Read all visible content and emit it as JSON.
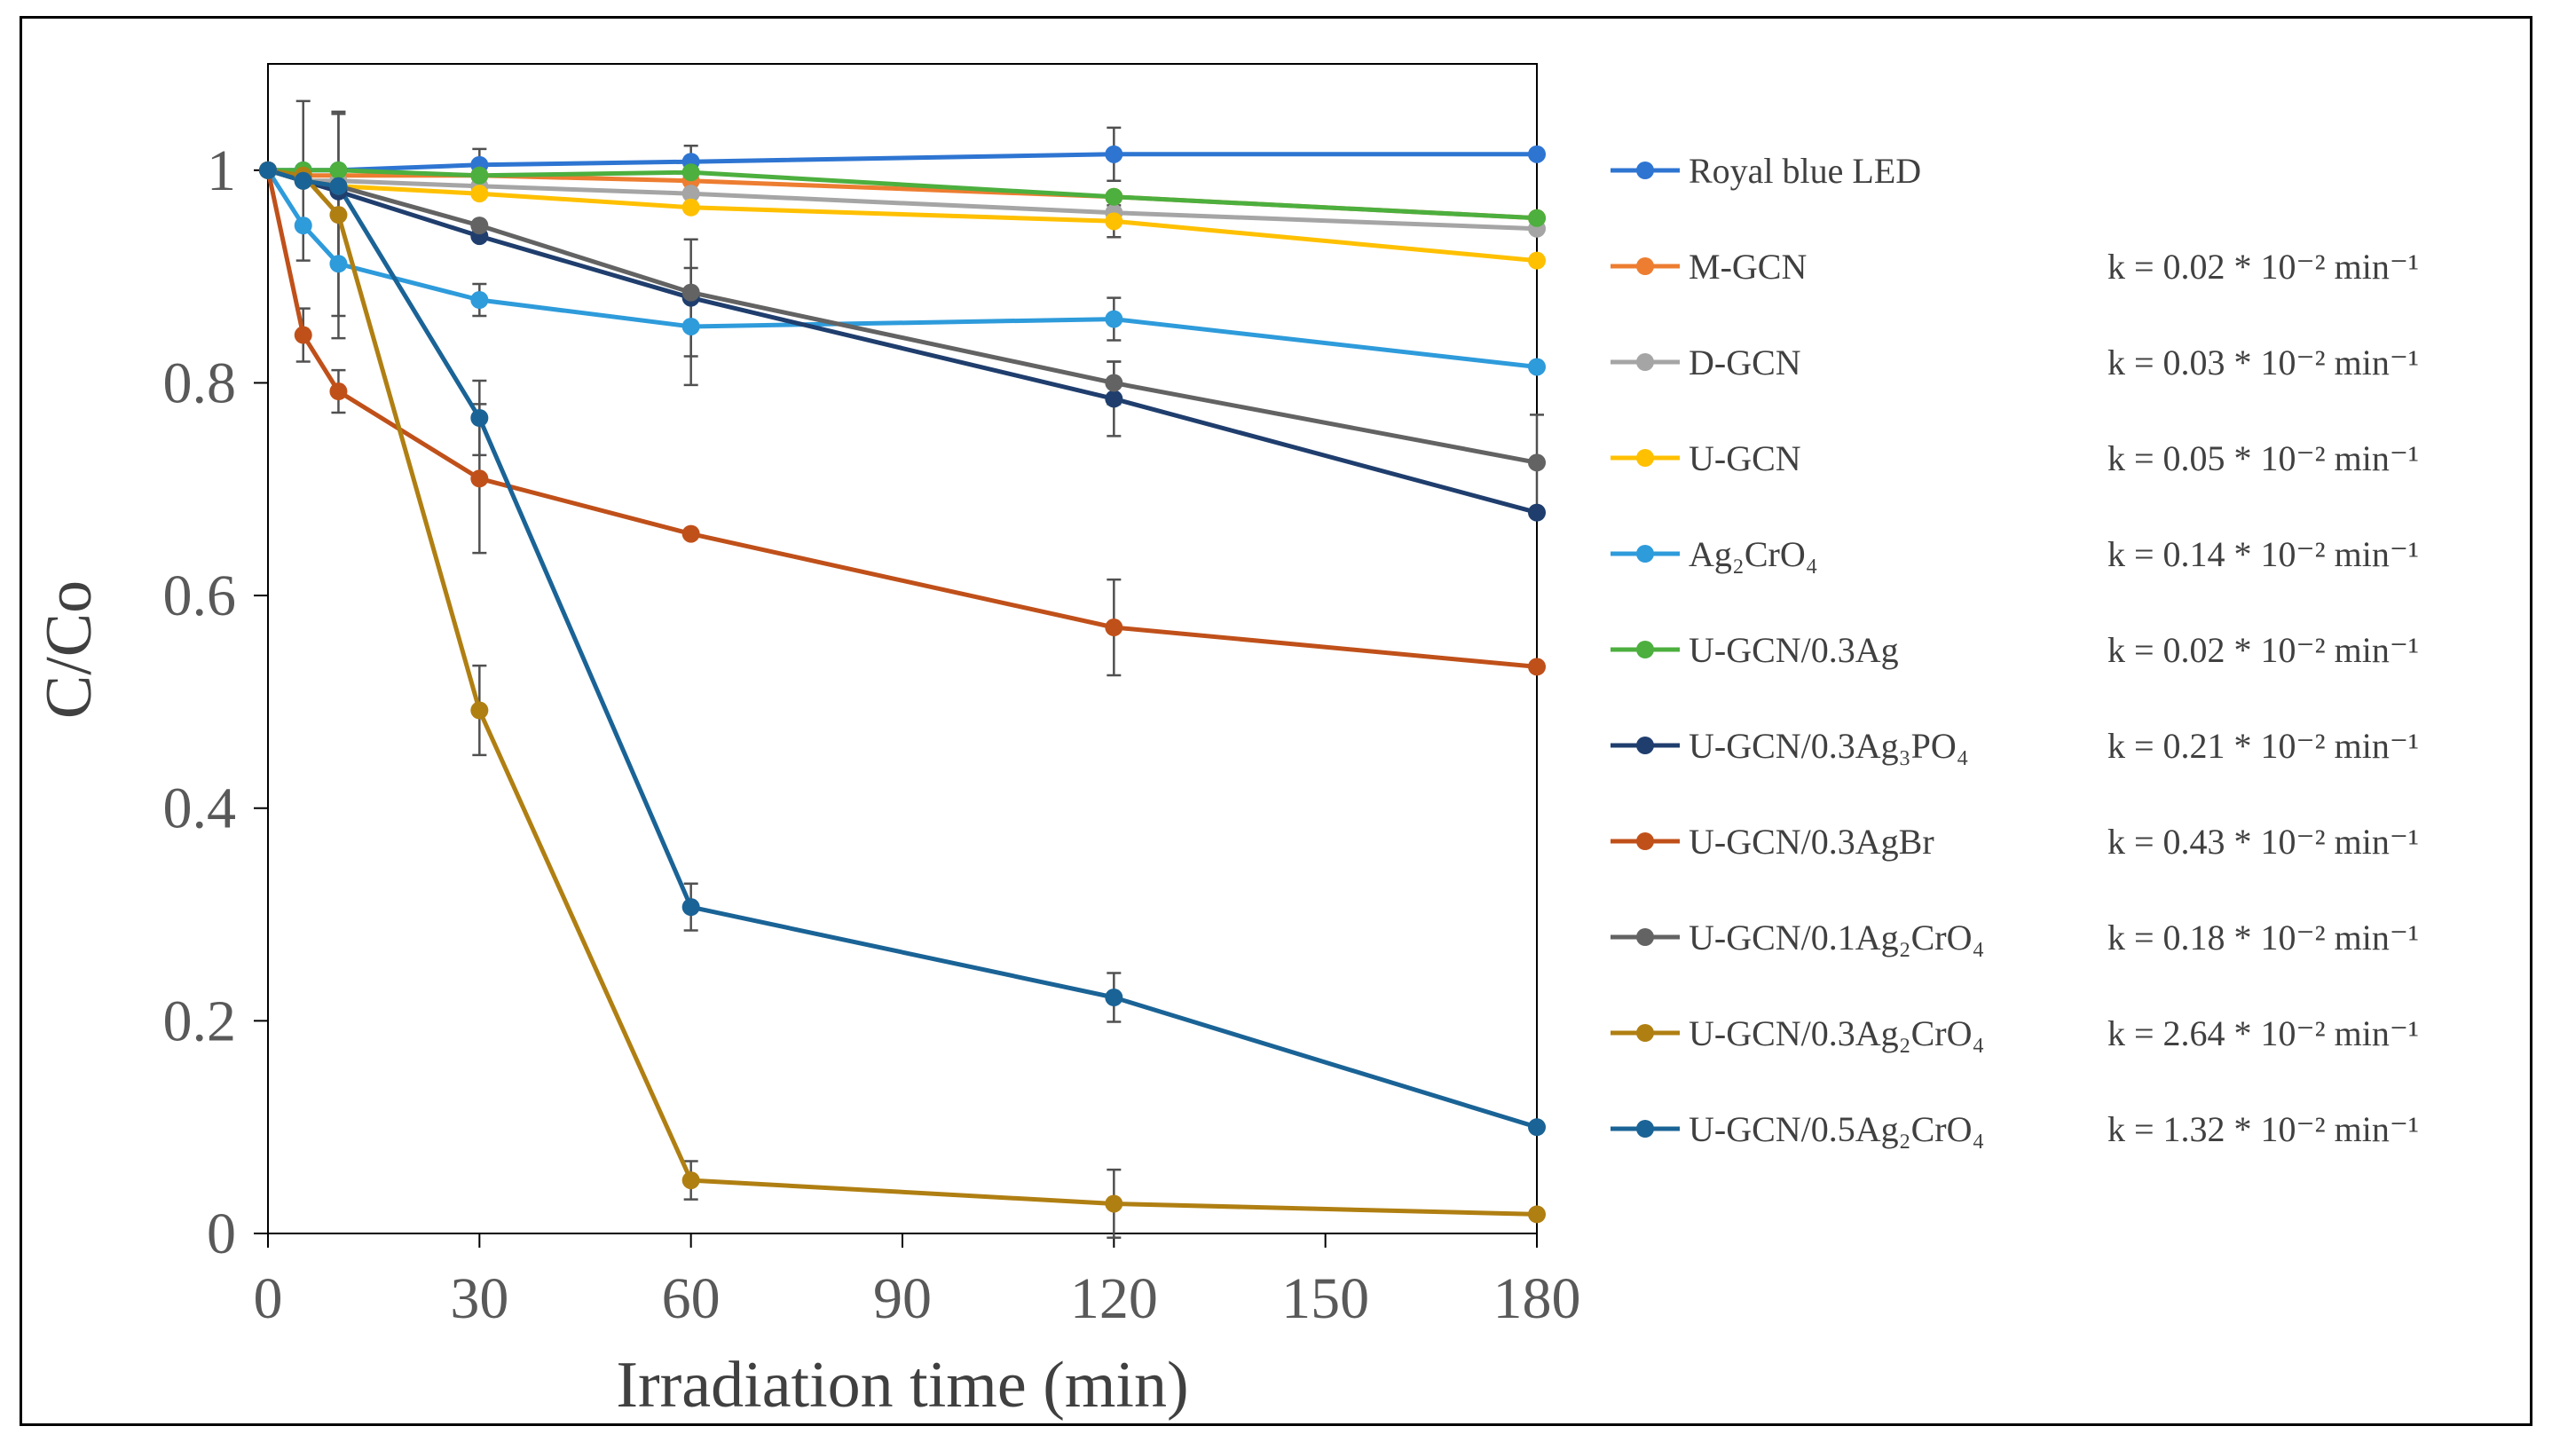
{
  "chart_data": {
    "type": "line",
    "title": "",
    "xlabel": "Irradiation time (min)",
    "ylabel": "C/Co",
    "xlim": [
      0,
      180
    ],
    "ylim": [
      0,
      1.1
    ],
    "xticks": [
      0,
      30,
      60,
      90,
      120,
      150,
      180
    ],
    "xtick_labels": [
      "0",
      "30",
      "60",
      "90",
      "120",
      "150",
      "180"
    ],
    "yticks": [
      0,
      0.2,
      0.4,
      0.6,
      0.8,
      1
    ],
    "ytick_labels": [
      "0",
      "0.2",
      "0.4",
      "0.6",
      "0.8",
      "1"
    ],
    "grid": false,
    "legend_position": "right",
    "x": [
      0,
      5,
      10,
      30,
      60,
      120,
      180
    ],
    "series": [
      {
        "name": "Royal blue LED",
        "k": "",
        "color": "#2E75D2",
        "values": [
          1.0,
          1.0,
          1.0,
          1.005,
          1.008,
          1.015,
          1.015
        ],
        "errors": [
          0,
          0,
          0,
          0.015,
          0.015,
          0.025,
          0
        ]
      },
      {
        "name": "M-GCN",
        "k": "k = 0.02 * 10⁻² min⁻¹",
        "color": "#ED7D31",
        "values": [
          1.0,
          0.995,
          0.995,
          0.995,
          0.99,
          0.975,
          0.955
        ],
        "errors": [
          0,
          0,
          0,
          0,
          0,
          0,
          0
        ]
      },
      {
        "name": "D-GCN",
        "k": "k = 0.03 * 10⁻² min⁻¹",
        "color": "#A5A5A5",
        "values": [
          1.0,
          0.99,
          0.99,
          0.985,
          0.978,
          0.96,
          0.945
        ],
        "errors": [
          0,
          0,
          0,
          0,
          0,
          0,
          0
        ]
      },
      {
        "name": "U-GCN",
        "k": "k = 0.05 * 10⁻² min⁻¹",
        "color": "#FFC000",
        "values": [
          1.0,
          0.99,
          0.985,
          0.978,
          0.965,
          0.952,
          0.915
        ],
        "errors": [
          0,
          0,
          0,
          0,
          0,
          0.015,
          0
        ]
      },
      {
        "name": "Ag₂CrO₄",
        "k": "k = 0.14 * 10⁻² min⁻¹",
        "color": "#2E9BDB",
        "values": [
          1.0,
          0.948,
          0.912,
          0.878,
          0.853,
          0.86,
          0.815
        ],
        "errors": [
          0,
          0,
          0.07,
          0.015,
          0.055,
          0.02,
          0
        ]
      },
      {
        "name": "U-GCN/0.3Ag",
        "k": "k = 0.02 * 10⁻² min⁻¹",
        "color": "#4CAF3E",
        "values": [
          1.0,
          1.0,
          1.0,
          0.995,
          0.998,
          0.975,
          0.955
        ],
        "errors": [
          0,
          0,
          0,
          0,
          0,
          0,
          0
        ]
      },
      {
        "name": "U-GCN/0.3Ag₃PO₄",
        "k": "k = 0.21 * 10⁻² min⁻¹",
        "color": "#1F3E6E",
        "values": [
          1.0,
          0.99,
          0.98,
          0.938,
          0.88,
          0.785,
          0.678
        ],
        "errors": [
          0,
          0,
          0,
          0,
          0.055,
          0.035,
          0
        ]
      },
      {
        "name": "U-GCN/0.3AgBr",
        "k": "k = 0.43 * 10⁻² min⁻¹",
        "color": "#C0501A",
        "values": [
          1.0,
          0.845,
          0.792,
          0.71,
          0.658,
          0.57,
          0.533
        ],
        "errors": [
          0,
          0.025,
          0.02,
          0.07,
          0,
          0.045,
          0
        ]
      },
      {
        "name": "U-GCN/0.1Ag₂CrO₄",
        "k": "k = 0.18 * 10⁻² min⁻¹",
        "color": "#636363",
        "values": [
          1.0,
          0.99,
          0.985,
          0.948,
          0.885,
          0.8,
          0.725
        ],
        "errors": [
          0,
          0.075,
          0.07,
          0,
          0,
          0.02,
          0.045
        ]
      },
      {
        "name": "U-GCN/0.3Ag₂CrO₄",
        "k": "k = 2.64 * 10⁻² min⁻¹",
        "color": "#B07F12",
        "values": [
          1.0,
          0.995,
          0.958,
          0.492,
          0.05,
          0.028,
          0.018
        ],
        "errors": [
          0,
          0,
          0.095,
          0.042,
          0.018,
          0.032,
          0
        ]
      },
      {
        "name": "U-GCN/0.5Ag₂CrO₄",
        "k": "k = 1.32 * 10⁻² min⁻¹",
        "color": "#1A6396",
        "values": [
          1.0,
          0.99,
          0.985,
          0.767,
          0.307,
          0.222,
          0.1
        ],
        "errors": [
          0,
          0,
          0,
          0.035,
          0.022,
          0.023,
          0
        ]
      }
    ]
  }
}
